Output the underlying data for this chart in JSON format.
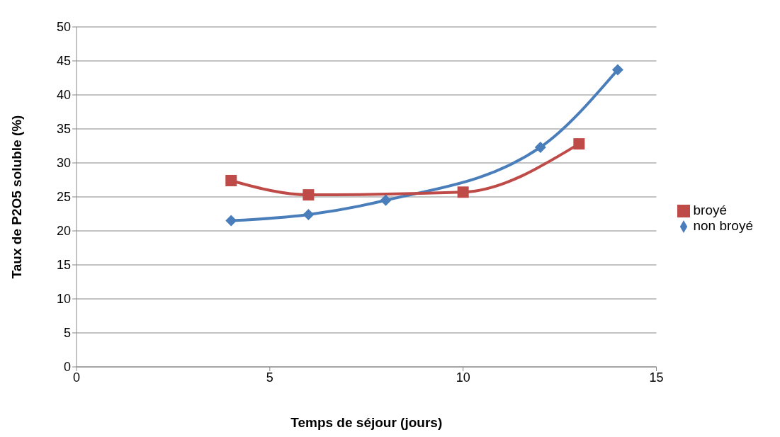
{
  "chart_data": {
    "type": "line",
    "xlabel": "Temps de séjour (jours)",
    "ylabel": "Taux de P2O5 soluble (%)",
    "xlim": [
      0,
      15
    ],
    "xticks": [
      0,
      5,
      10,
      15
    ],
    "ylim": [
      0,
      50
    ],
    "yticks": [
      0,
      5,
      10,
      15,
      20,
      25,
      30,
      35,
      40,
      45,
      50
    ],
    "grid": "y",
    "legend": "right",
    "series": [
      {
        "name": "non broyé",
        "color": "#4a7ebb",
        "marker": "diamond",
        "x": [
          4,
          6,
          8,
          12,
          14
        ],
        "values": [
          21.5,
          22.4,
          24.5,
          32.3,
          43.7
        ]
      },
      {
        "name": "broyé",
        "color": "#be4b48",
        "marker": "square",
        "x": [
          4,
          6,
          10,
          13
        ],
        "values": [
          27.4,
          25.3,
          25.7,
          32.8
        ]
      }
    ]
  }
}
